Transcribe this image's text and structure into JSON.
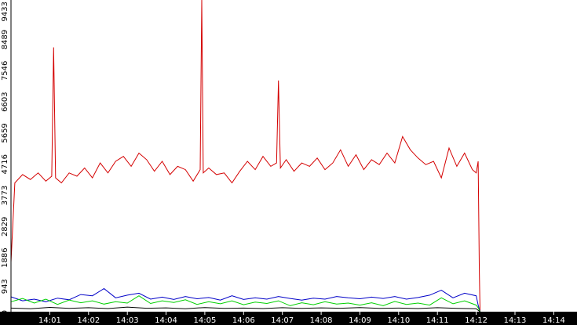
{
  "chart_data": {
    "type": "line",
    "title": "",
    "xlabel": "",
    "ylabel": "",
    "ylim": [
      0,
      9433
    ],
    "y_ticks": [
      0,
      943,
      1886,
      2829,
      3773,
      4716,
      5659,
      6603,
      7546,
      8489,
      9433
    ],
    "y_tick_labels": [
      "0",
      "943",
      "1886",
      "2829",
      "3773",
      "4716",
      "5659",
      "6603",
      "7546",
      "8489",
      "9433"
    ],
    "x_range_minutes": [
      0,
      14.6
    ],
    "x_ticks": [
      1,
      2,
      3,
      4,
      5,
      6,
      7,
      8,
      9,
      10,
      11,
      12,
      13,
      14
    ],
    "x_tick_labels": [
      "14:01",
      "14:02",
      "14:03",
      "14:04",
      "14:05",
      "14:06",
      "14:07",
      "14:08",
      "14:09",
      "14:10",
      "14:11",
      "14:12",
      "14:13",
      "14:14"
    ],
    "grid": false,
    "legend": "none",
    "series": [
      {
        "color": "#d40000",
        "x": [
          0.0,
          0.1,
          0.3,
          0.5,
          0.7,
          0.9,
          1.05,
          1.1,
          1.15,
          1.3,
          1.5,
          1.7,
          1.9,
          2.1,
          2.3,
          2.5,
          2.7,
          2.9,
          3.1,
          3.3,
          3.5,
          3.7,
          3.9,
          4.1,
          4.3,
          4.5,
          4.7,
          4.88,
          4.92,
          4.96,
          5.1,
          5.3,
          5.5,
          5.7,
          5.9,
          6.1,
          6.3,
          6.5,
          6.7,
          6.85,
          6.9,
          6.95,
          7.1,
          7.3,
          7.5,
          7.7,
          7.9,
          8.1,
          8.3,
          8.5,
          8.7,
          8.9,
          9.1,
          9.3,
          9.5,
          9.7,
          9.9,
          10.1,
          10.3,
          10.5,
          10.7,
          10.9,
          11.1,
          11.3,
          11.5,
          11.7,
          11.9,
          12.0,
          12.05,
          12.08,
          12.1
        ],
        "values": [
          1500,
          3900,
          4150,
          4000,
          4200,
          3950,
          4100,
          8000,
          4050,
          3900,
          4200,
          4100,
          4350,
          4050,
          4500,
          4200,
          4550,
          4700,
          4400,
          4800,
          4600,
          4250,
          4550,
          4150,
          4400,
          4300,
          3950,
          4300,
          9433,
          4200,
          4350,
          4150,
          4200,
          3900,
          4250,
          4550,
          4300,
          4700,
          4400,
          4500,
          7000,
          4350,
          4600,
          4250,
          4500,
          4400,
          4650,
          4300,
          4500,
          4900,
          4400,
          4750,
          4300,
          4600,
          4450,
          4800,
          4500,
          5300,
          4900,
          4650,
          4450,
          4550,
          4050,
          4950,
          4400,
          4800,
          4300,
          4200,
          4550,
          1200,
          0
        ]
      },
      {
        "color": "#0000c8",
        "x": [
          0.0,
          0.3,
          0.6,
          0.9,
          1.2,
          1.5,
          1.8,
          2.1,
          2.4,
          2.7,
          3.0,
          3.3,
          3.6,
          3.9,
          4.2,
          4.5,
          4.8,
          5.1,
          5.4,
          5.7,
          6.0,
          6.3,
          6.6,
          6.9,
          7.2,
          7.5,
          7.8,
          8.1,
          8.4,
          8.7,
          9.0,
          9.3,
          9.6,
          9.9,
          10.2,
          10.5,
          10.8,
          11.1,
          11.4,
          11.7,
          12.0,
          12.05,
          12.1
        ],
        "values": [
          450,
          330,
          380,
          300,
          410,
          360,
          520,
          480,
          700,
          420,
          500,
          560,
          380,
          440,
          370,
          460,
          390,
          430,
          350,
          480,
          370,
          420,
          380,
          460,
          400,
          350,
          410,
          380,
          460,
          420,
          390,
          440,
          400,
          460,
          380,
          430,
          500,
          650,
          420,
          560,
          480,
          200,
          0
        ]
      },
      {
        "color": "#00d000",
        "x": [
          0.0,
          0.3,
          0.6,
          0.9,
          1.2,
          1.5,
          1.8,
          2.1,
          2.4,
          2.7,
          3.0,
          3.3,
          3.6,
          3.9,
          4.2,
          4.5,
          4.8,
          5.1,
          5.4,
          5.7,
          6.0,
          6.3,
          6.6,
          6.9,
          7.2,
          7.5,
          7.8,
          8.1,
          8.4,
          8.7,
          9.0,
          9.3,
          9.6,
          9.9,
          10.2,
          10.5,
          10.8,
          11.1,
          11.4,
          11.7,
          12.0,
          12.05,
          12.1
        ],
        "values": [
          300,
          400,
          260,
          380,
          220,
          350,
          270,
          330,
          230,
          300,
          260,
          480,
          250,
          330,
          280,
          360,
          220,
          300,
          240,
          330,
          210,
          290,
          250,
          330,
          180,
          270,
          210,
          300,
          230,
          260,
          200,
          270,
          180,
          310,
          220,
          260,
          200,
          420,
          240,
          330,
          200,
          120,
          0
        ]
      },
      {
        "color": "#000000",
        "x": [
          0.0,
          0.5,
          1.0,
          1.5,
          2.0,
          2.5,
          3.0,
          3.5,
          4.0,
          4.5,
          5.0,
          5.5,
          6.0,
          6.5,
          7.0,
          7.5,
          8.0,
          8.5,
          9.0,
          9.5,
          10.0,
          10.5,
          11.0,
          11.5,
          12.0,
          12.1
        ],
        "values": [
          110,
          90,
          130,
          100,
          120,
          95,
          140,
          105,
          115,
          90,
          125,
          100,
          110,
          95,
          120,
          100,
          115,
          105,
          125,
          100,
          110,
          95,
          120,
          100,
          90,
          0
        ]
      }
    ]
  }
}
